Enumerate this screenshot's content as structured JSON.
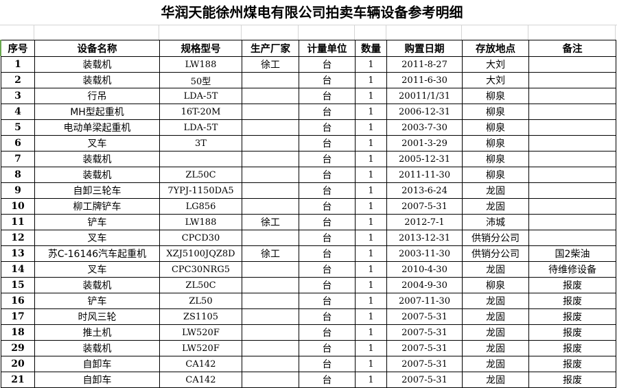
{
  "title": "华润天能徐州煤电有限公司拍卖车辆设备参考明细",
  "headers": [
    "序号",
    "设备名称",
    "规格型号",
    "生产厂家",
    "计量单位",
    "数量",
    "购置日期",
    "存放地点",
    "备注"
  ],
  "rows": [
    [
      "1",
      "装载机",
      "LW188",
      "徐工",
      "台",
      "1",
      "2011-8-27",
      "大刘",
      ""
    ],
    [
      "2",
      "装载机",
      "50型",
      "",
      "台",
      "1",
      "2011-6-30",
      "大刘",
      ""
    ],
    [
      "3",
      "行吊",
      "LDA-5T",
      "",
      "台",
      "1",
      "20011/1/31",
      "柳泉",
      ""
    ],
    [
      "4",
      "MH型起重机",
      "16T-20M",
      "",
      "台",
      "1",
      "2006-12-31",
      "柳泉",
      ""
    ],
    [
      "5",
      "电动单梁起重机",
      "LDA-5T",
      "",
      "台",
      "1",
      "2003-7-30",
      "柳泉",
      ""
    ],
    [
      "6",
      "叉车",
      "3T",
      "",
      "台",
      "1",
      "2001-3-29",
      "柳泉",
      ""
    ],
    [
      "7",
      "装载机",
      "",
      "",
      "台",
      "1",
      "2005-12-31",
      "柳泉",
      ""
    ],
    [
      "8",
      "装载机",
      "ZL50C",
      "",
      "台",
      "1",
      "2011-11-30",
      "柳泉",
      ""
    ],
    [
      "9",
      "自卸三轮车",
      "7YPJ-1150DA5",
      "",
      "台",
      "1",
      "2013-6-24",
      "龙固",
      ""
    ],
    [
      "10",
      "柳工牌铲车",
      "LG856",
      "",
      "台",
      "1",
      "2007-5-31",
      "龙固",
      ""
    ],
    [
      "11",
      "铲车",
      "LW188",
      "徐工",
      "台",
      "1",
      "2012-7-1",
      "沛城",
      ""
    ],
    [
      "12",
      "叉车",
      "CPCD30",
      "",
      "台",
      "1",
      "2013-12-31",
      "供销分公司",
      ""
    ],
    [
      "13",
      "苏C-16146汽车起重机",
      "XZJ5100JQZ8D",
      "徐工",
      "台",
      "1",
      "2003-11-30",
      "供销分公司",
      "国2柴油"
    ],
    [
      "14",
      "叉车",
      "CPC30NRG5",
      "",
      "台",
      "1",
      "2010-4-30",
      "龙固",
      "待维修设备"
    ],
    [
      "15",
      "装载机",
      "ZL50C",
      "",
      "台",
      "1",
      "2004-9-30",
      "柳泉",
      "报废"
    ],
    [
      "16",
      "铲车",
      "ZL50",
      "",
      "台",
      "1",
      "2007-11-30",
      "龙固",
      "报废"
    ],
    [
      "17",
      "时风三轮",
      "ZS1105",
      "",
      "台",
      "1",
      "2007-5-31",
      "龙固",
      "报废"
    ],
    [
      "18",
      "推土机",
      "LW520F",
      "",
      "台",
      "1",
      "2007-5-31",
      "龙固",
      "报废"
    ],
    [
      "29",
      "装载机",
      "LW520F",
      "",
      "台",
      "1",
      "2007-5-31",
      "龙固",
      "报废"
    ],
    [
      "20",
      "自卸车",
      "CA142",
      "",
      "台",
      "1",
      "2007-5-31",
      "龙固",
      "报废"
    ],
    [
      "21",
      "自卸车",
      "CA142",
      "",
      "台",
      "1",
      "2007-5-31",
      "龙固",
      "报废"
    ]
  ]
}
